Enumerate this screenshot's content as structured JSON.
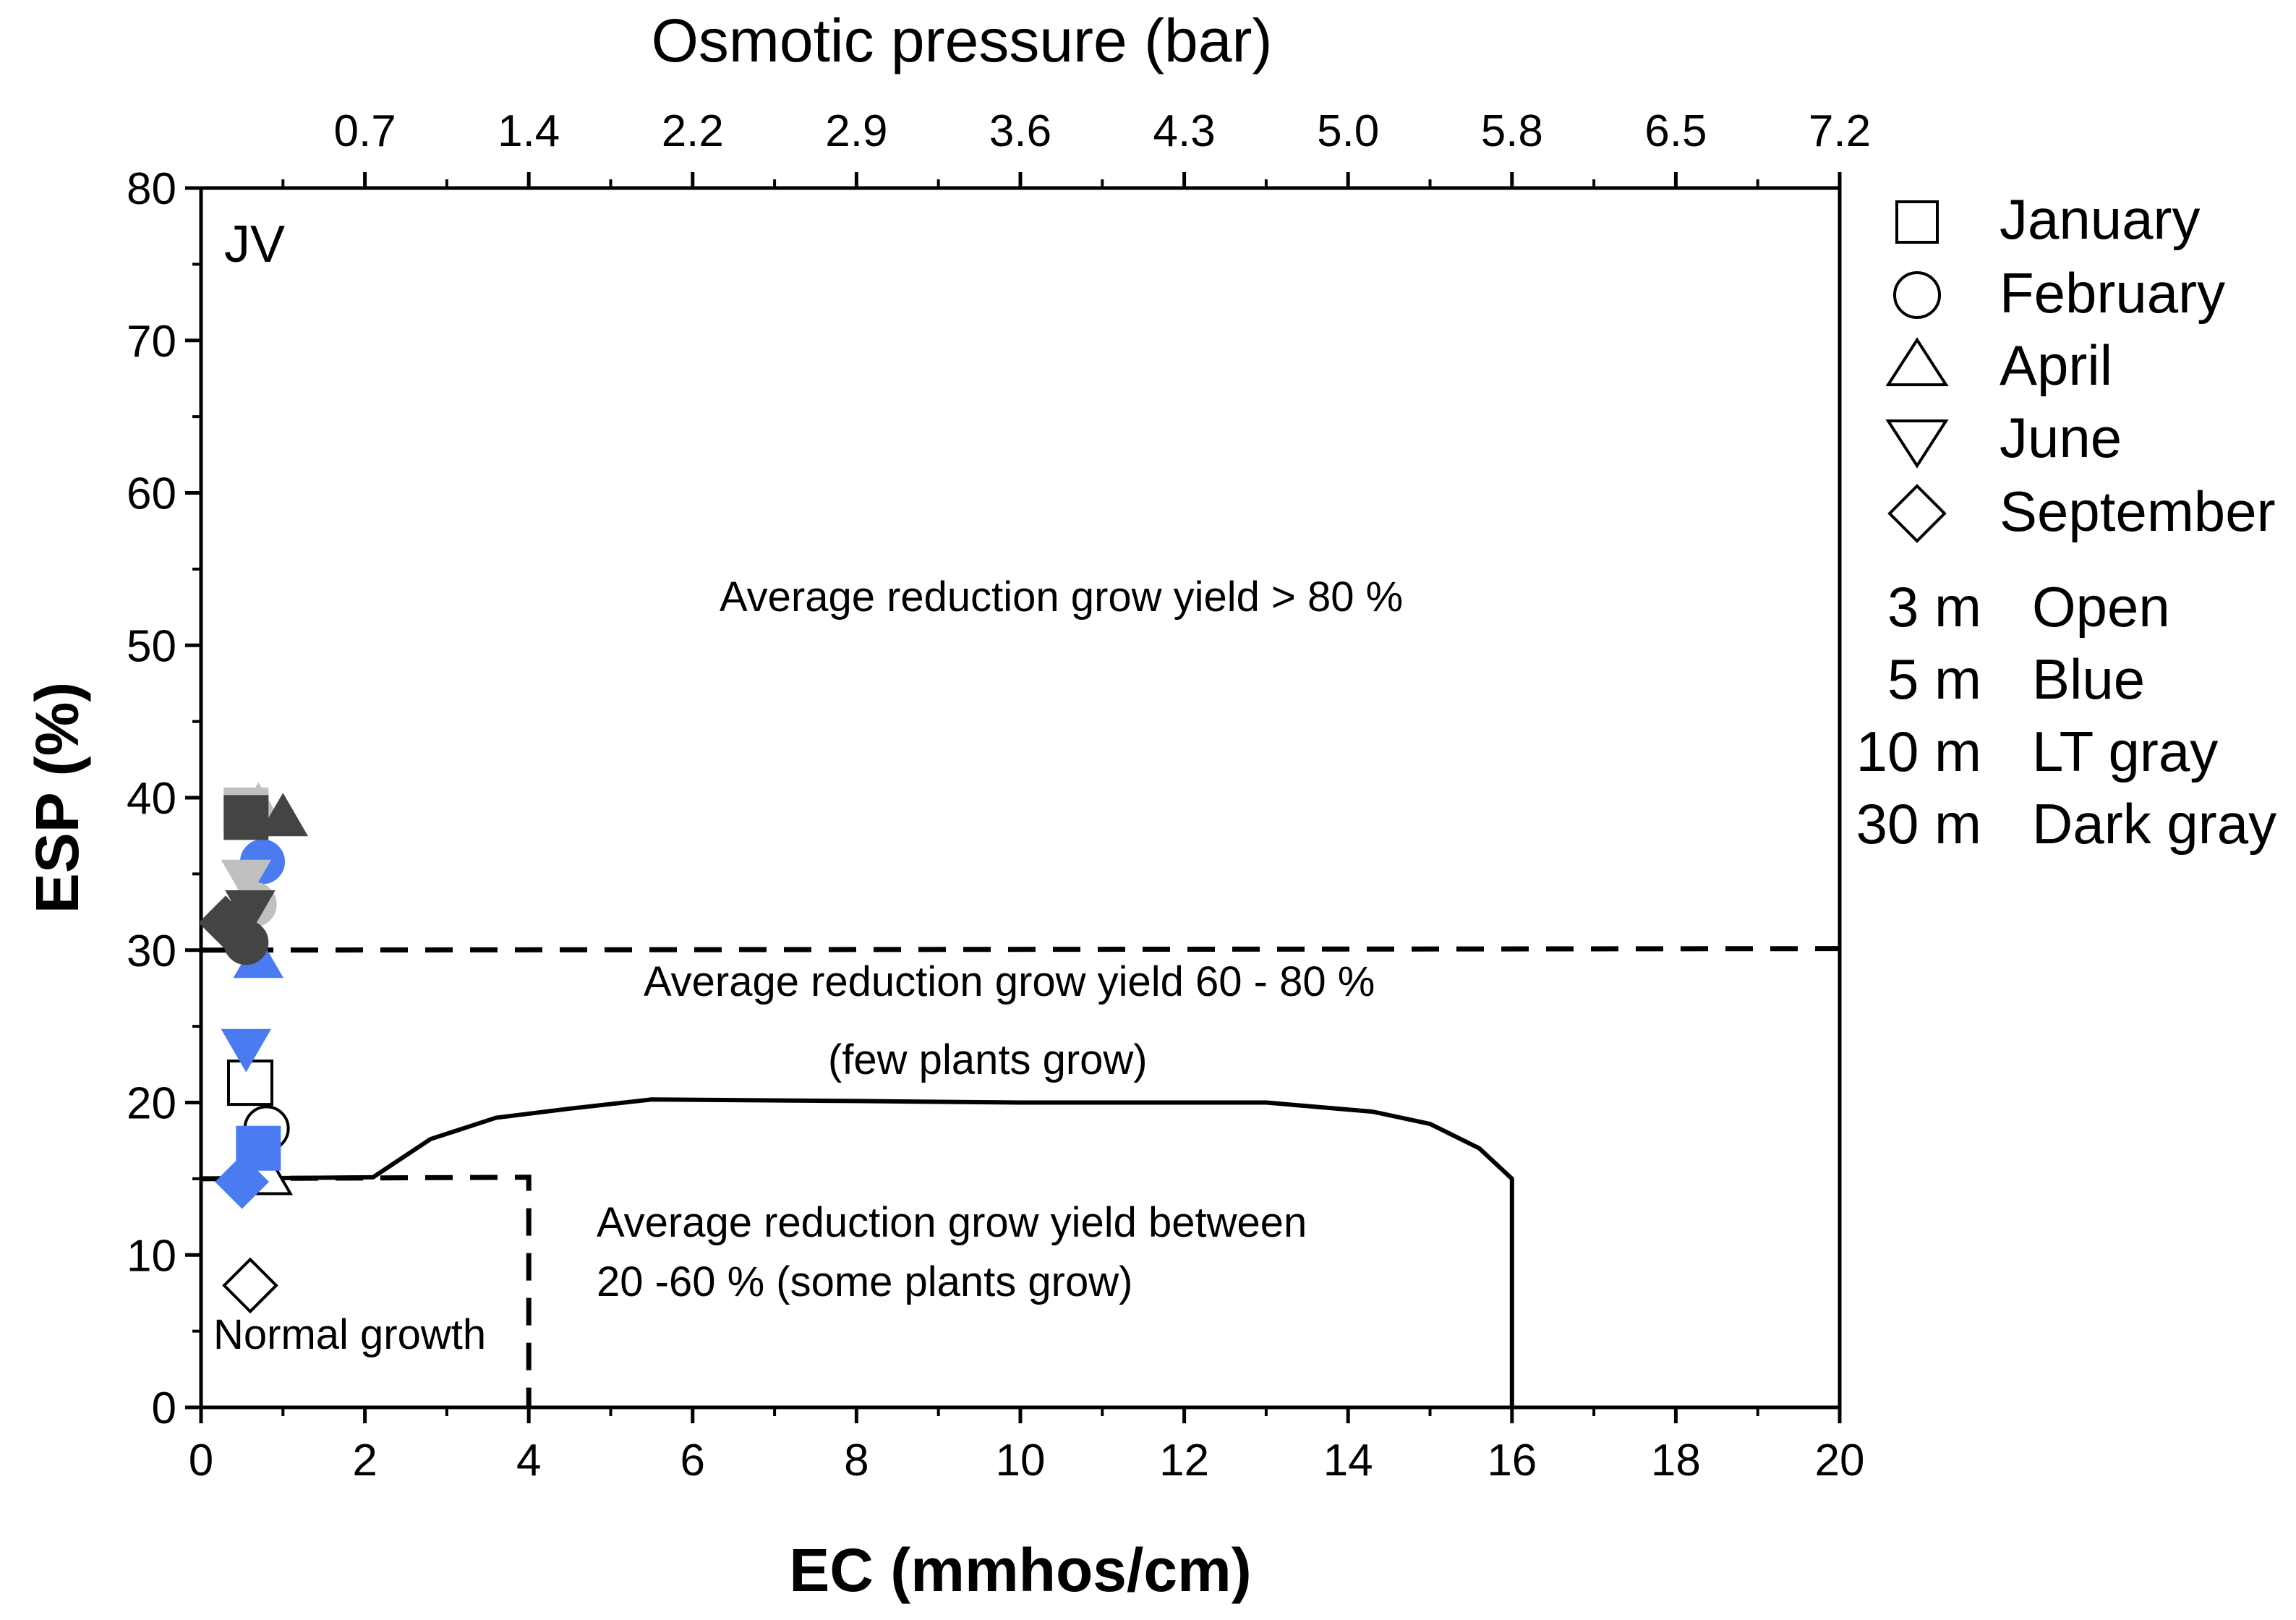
{
  "chart_data": {
    "type": "scatter",
    "panel_label": "JV",
    "xlabel": "EC (mmhos/cm)",
    "ylabel": "ESP (%)",
    "top_label": "Osmotic pressure (bar)",
    "xlim": [
      0,
      20
    ],
    "ylim": [
      0,
      80
    ],
    "x_ticks": [
      "0",
      "2",
      "4",
      "6",
      "8",
      "10",
      "12",
      "14",
      "16",
      "18",
      "20"
    ],
    "y_ticks": [
      "0",
      "10",
      "20",
      "30",
      "40",
      "50",
      "60",
      "70",
      "80"
    ],
    "top_ticks": [
      {
        "ec": 2,
        "label": "0.7"
      },
      {
        "ec": 4,
        "label": "1.4"
      },
      {
        "ec": 6,
        "label": "2.2"
      },
      {
        "ec": 8,
        "label": "2.9"
      },
      {
        "ec": 10,
        "label": "3.6"
      },
      {
        "ec": 12,
        "label": "4.3"
      },
      {
        "ec": 14,
        "label": "5.0"
      },
      {
        "ec": 16,
        "label": "5.8"
      },
      {
        "ec": 18,
        "label": "6.5"
      },
      {
        "ec": 20,
        "label": "7.2"
      }
    ],
    "legend_months": [
      {
        "month": "January",
        "marker": "square"
      },
      {
        "month": "February",
        "marker": "circle"
      },
      {
        "month": "April",
        "marker": "triangle-up"
      },
      {
        "month": "June",
        "marker": "triangle-down"
      },
      {
        "month": "September",
        "marker": "diamond"
      }
    ],
    "legend_depths": [
      {
        "depth": "3 m",
        "fill": "Open"
      },
      {
        "depth": "5 m",
        "fill": "Blue"
      },
      {
        "depth": "10 m",
        "fill": "LT gray"
      },
      {
        "depth": "30 m",
        "fill": "Dark gray"
      }
    ],
    "colors": {
      "3 m": "#ffffff",
      "5 m": "#4a7bf0",
      "10 m": "#c0c0c0",
      "30 m": "#444444"
    },
    "region_labels": {
      "above_80": "Average reduction grow yield > 80 %",
      "range_60_80": "Average reduction grow yield 60 - 80 %",
      "few_plants": "(few plants grow)",
      "range_20_60_line1": "Average reduction grow yield between",
      "range_20_60_line2": "20 -60 % (some plants grow)",
      "normal": "Normal growth"
    },
    "boundaries": {
      "dashed_upper": {
        "x": [
          0,
          20
        ],
        "y": [
          30,
          30.1
        ]
      },
      "dashed_lower": [
        {
          "x": 0,
          "y": 15
        },
        {
          "x": 4,
          "y": 15.1
        },
        {
          "x": 4,
          "y": 0
        }
      ],
      "solid_curve": [
        {
          "x": 0,
          "y": 15
        },
        {
          "x": 2.1,
          "y": 15.1
        },
        {
          "x": 2.8,
          "y": 17.6
        },
        {
          "x": 3.6,
          "y": 19
        },
        {
          "x": 4.5,
          "y": 19.6
        },
        {
          "x": 5.5,
          "y": 20.2
        },
        {
          "x": 8,
          "y": 20.1
        },
        {
          "x": 10,
          "y": 20
        },
        {
          "x": 13,
          "y": 20
        },
        {
          "x": 14.3,
          "y": 19.4
        },
        {
          "x": 15,
          "y": 18.6
        },
        {
          "x": 15.6,
          "y": 17
        },
        {
          "x": 16,
          "y": 15
        },
        {
          "x": 16,
          "y": 0
        }
      ]
    },
    "series": [
      {
        "month": "January",
        "depth": "3 m",
        "x": 0.6,
        "y": 21.3
      },
      {
        "month": "February",
        "depth": "3 m",
        "x": 0.8,
        "y": 18.3
      },
      {
        "month": "April",
        "depth": "3 m",
        "x": 0.8,
        "y": 15.3
      },
      {
        "month": "September",
        "depth": "3 m",
        "x": 0.6,
        "y": 8
      },
      {
        "month": "January",
        "depth": "5 m",
        "x": 0.7,
        "y": 17
      },
      {
        "month": "February",
        "depth": "5 m",
        "x": 0.75,
        "y": 35.8
      },
      {
        "month": "April",
        "depth": "5 m",
        "x": 0.7,
        "y": 29.5
      },
      {
        "month": "June",
        "depth": "5 m",
        "x": 0.55,
        "y": 23.5
      },
      {
        "month": "September",
        "depth": "5 m",
        "x": 0.5,
        "y": 14.8
      },
      {
        "month": "January",
        "depth": "10 m",
        "x": 0.55,
        "y": 39.2
      },
      {
        "month": "April",
        "depth": "10 m",
        "x": 0.7,
        "y": 39.5
      },
      {
        "month": "June",
        "depth": "10 m",
        "x": 0.55,
        "y": 34.6
      },
      {
        "month": "February",
        "depth": "10 m",
        "x": 0.65,
        "y": 33
      },
      {
        "month": "January",
        "depth": "30 m",
        "x": 0.55,
        "y": 38.7
      },
      {
        "month": "April",
        "depth": "30 m",
        "x": 1.0,
        "y": 38.8
      },
      {
        "month": "June",
        "depth": "30 m",
        "x": 0.6,
        "y": 32.6
      },
      {
        "month": "September",
        "depth": "30 m",
        "x": 0.3,
        "y": 31.8
      },
      {
        "month": "February",
        "depth": "30 m",
        "x": 0.55,
        "y": 30.5
      }
    ]
  }
}
